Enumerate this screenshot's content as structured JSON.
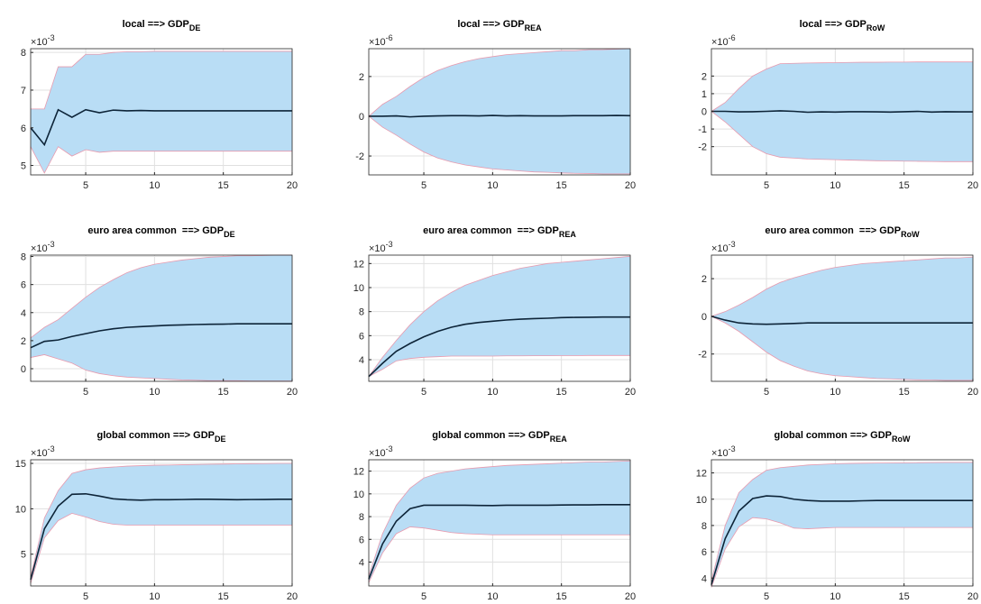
{
  "chart_data": [
    {
      "type": "line",
      "title": "local ==> GDP",
      "title_sub": "DE",
      "y_scale_label": "×10",
      "y_scale_power": "-3",
      "x": [
        1,
        2,
        3,
        4,
        5,
        6,
        7,
        8,
        9,
        10,
        11,
        12,
        13,
        14,
        15,
        16,
        17,
        18,
        19,
        20
      ],
      "xlim": [
        1,
        20
      ],
      "xticks": [
        5,
        10,
        15,
        20
      ],
      "ylim": [
        4.75,
        8.1
      ],
      "yticks": [
        5,
        6,
        7,
        8
      ],
      "grid": true,
      "series": [
        {
          "color": "#0d2438",
          "values": [
            6.0,
            5.55,
            6.48,
            6.28,
            6.48,
            6.4,
            6.47,
            6.45,
            6.46,
            6.45,
            6.45,
            6.45,
            6.45,
            6.45,
            6.45,
            6.45,
            6.45,
            6.45,
            6.45,
            6.45
          ]
        },
        {
          "color": "#e89aae",
          "fill": "#b9ddf5",
          "values": [
            6.5,
            6.5,
            7.62,
            7.62,
            7.95,
            7.95,
            8.0,
            8.02,
            8.02,
            8.03,
            8.03,
            8.03,
            8.03,
            8.03,
            8.03,
            8.03,
            8.03,
            8.03,
            8.03,
            8.03
          ]
        },
        {
          "color": "#e89aae",
          "values": [
            5.5,
            4.8,
            5.5,
            5.25,
            5.42,
            5.35,
            5.38,
            5.38,
            5.38,
            5.38,
            5.38,
            5.38,
            5.38,
            5.38,
            5.38,
            5.38,
            5.38,
            5.38,
            5.38,
            5.38
          ]
        }
      ]
    },
    {
      "type": "line",
      "title": "local ==> GDP",
      "title_sub": "REA",
      "y_scale_label": "×10",
      "y_scale_power": "-6",
      "x": [
        1,
        2,
        3,
        4,
        5,
        6,
        7,
        8,
        9,
        10,
        11,
        12,
        13,
        14,
        15,
        16,
        17,
        18,
        19,
        20
      ],
      "xlim": [
        1,
        20
      ],
      "xticks": [
        5,
        10,
        15,
        20
      ],
      "ylim": [
        -2.95,
        3.4
      ],
      "yticks": [
        -2,
        0,
        2
      ],
      "grid": true,
      "series": [
        {
          "color": "#0d2438",
          "values": [
            0,
            0,
            0.02,
            -0.03,
            0,
            0.02,
            0.03,
            0.03,
            0.02,
            0.04,
            0.02,
            0.03,
            0.02,
            0.02,
            0.02,
            0.03,
            0.03,
            0.03,
            0.04,
            0.03
          ]
        },
        {
          "color": "#e89aae",
          "fill": "#b9ddf5",
          "values": [
            0,
            0.6,
            1.0,
            1.5,
            1.95,
            2.3,
            2.55,
            2.75,
            2.9,
            3.0,
            3.1,
            3.15,
            3.2,
            3.25,
            3.3,
            3.3,
            3.35,
            3.35,
            3.38,
            3.4
          ]
        },
        {
          "color": "#e89aae",
          "values": [
            0,
            -0.55,
            -0.95,
            -1.4,
            -1.8,
            -2.1,
            -2.3,
            -2.45,
            -2.55,
            -2.65,
            -2.7,
            -2.75,
            -2.8,
            -2.82,
            -2.85,
            -2.87,
            -2.88,
            -2.9,
            -2.9,
            -2.9
          ]
        }
      ]
    },
    {
      "type": "line",
      "title": "local ==> GDP",
      "title_sub": "RoW",
      "y_scale_label": "×10",
      "y_scale_power": "-6",
      "x": [
        1,
        2,
        3,
        4,
        5,
        6,
        7,
        8,
        9,
        10,
        11,
        12,
        13,
        14,
        15,
        16,
        17,
        18,
        19,
        20
      ],
      "xlim": [
        1,
        20
      ],
      "xticks": [
        5,
        10,
        15,
        20
      ],
      "ylim": [
        -3.6,
        3.55
      ],
      "yticks": [
        -2,
        -1,
        0,
        1,
        2
      ],
      "grid": true,
      "series": [
        {
          "color": "#0d2438",
          "values": [
            0,
            0,
            -0.03,
            -0.02,
            0,
            0.03,
            0,
            -0.05,
            -0.03,
            -0.04,
            -0.02,
            -0.02,
            -0.03,
            -0.04,
            -0.02,
            0,
            -0.04,
            -0.02,
            -0.03,
            -0.03
          ]
        },
        {
          "color": "#e89aae",
          "fill": "#b9ddf5",
          "values": [
            0,
            0.5,
            1.3,
            2.0,
            2.4,
            2.7,
            2.72,
            2.74,
            2.75,
            2.76,
            2.77,
            2.78,
            2.78,
            2.79,
            2.79,
            2.8,
            2.8,
            2.8,
            2.8,
            2.8
          ]
        },
        {
          "color": "#e89aae",
          "values": [
            0,
            -0.6,
            -1.3,
            -2.0,
            -2.4,
            -2.6,
            -2.65,
            -2.7,
            -2.72,
            -2.74,
            -2.76,
            -2.78,
            -2.8,
            -2.81,
            -2.82,
            -2.83,
            -2.84,
            -2.85,
            -2.85,
            -2.85
          ]
        }
      ]
    },
    {
      "type": "line",
      "title": "euro area common  ==> GDP",
      "title_sub": "DE",
      "y_scale_label": "×10",
      "y_scale_power": "-3",
      "x": [
        1,
        2,
        3,
        4,
        5,
        6,
        7,
        8,
        9,
        10,
        11,
        12,
        13,
        14,
        15,
        16,
        17,
        18,
        19,
        20
      ],
      "xlim": [
        1,
        20
      ],
      "xticks": [
        5,
        10,
        15,
        20
      ],
      "ylim": [
        -0.9,
        8.1
      ],
      "yticks": [
        0,
        2,
        4,
        6,
        8
      ],
      "grid": true,
      "series": [
        {
          "color": "#0d2438",
          "values": [
            1.5,
            1.95,
            2.05,
            2.3,
            2.5,
            2.7,
            2.85,
            2.95,
            3.0,
            3.05,
            3.1,
            3.12,
            3.15,
            3.17,
            3.18,
            3.2,
            3.2,
            3.2,
            3.2,
            3.2
          ]
        },
        {
          "color": "#e89aae",
          "fill": "#b9ddf5",
          "values": [
            2.2,
            2.95,
            3.5,
            4.3,
            5.1,
            5.8,
            6.35,
            6.85,
            7.2,
            7.45,
            7.6,
            7.75,
            7.85,
            7.95,
            8.0,
            8.05,
            8.05,
            8.08,
            8.1,
            8.1
          ]
        },
        {
          "color": "#e89aae",
          "values": [
            0.8,
            1.0,
            0.7,
            0.4,
            -0.1,
            -0.35,
            -0.5,
            -0.6,
            -0.65,
            -0.7,
            -0.75,
            -0.8,
            -0.82,
            -0.85,
            -0.85,
            -0.85,
            -0.88,
            -0.88,
            -0.88,
            -0.88
          ]
        }
      ]
    },
    {
      "type": "line",
      "title": "euro area common  ==> GDP",
      "title_sub": "REA",
      "y_scale_label": "×10",
      "y_scale_power": "-3",
      "x": [
        1,
        2,
        3,
        4,
        5,
        6,
        7,
        8,
        9,
        10,
        11,
        12,
        13,
        14,
        15,
        16,
        17,
        18,
        19,
        20
      ],
      "xlim": [
        1,
        20
      ],
      "xticks": [
        5,
        10,
        15,
        20
      ],
      "ylim": [
        2.2,
        12.7
      ],
      "yticks": [
        4,
        6,
        8,
        10,
        12
      ],
      "grid": true,
      "series": [
        {
          "color": "#0d2438",
          "values": [
            2.6,
            3.7,
            4.7,
            5.35,
            5.9,
            6.35,
            6.7,
            6.95,
            7.1,
            7.2,
            7.3,
            7.37,
            7.42,
            7.45,
            7.5,
            7.52,
            7.53,
            7.55,
            7.55,
            7.55
          ]
        },
        {
          "color": "#e89aae",
          "fill": "#b9ddf5",
          "values": [
            2.6,
            4.2,
            5.6,
            6.9,
            8.0,
            8.9,
            9.6,
            10.2,
            10.6,
            11.0,
            11.3,
            11.6,
            11.8,
            12.0,
            12.1,
            12.2,
            12.3,
            12.4,
            12.5,
            12.6
          ]
        },
        {
          "color": "#e89aae",
          "values": [
            2.6,
            3.2,
            3.9,
            4.1,
            4.2,
            4.25,
            4.3,
            4.3,
            4.3,
            4.3,
            4.32,
            4.32,
            4.33,
            4.33,
            4.34,
            4.34,
            4.35,
            4.35,
            4.35,
            4.35
          ]
        }
      ]
    },
    {
      "type": "line",
      "title": "euro area common  ==> GDP",
      "title_sub": "RoW",
      "y_scale_label": "×10",
      "y_scale_power": "-3",
      "x": [
        1,
        2,
        3,
        4,
        5,
        6,
        7,
        8,
        9,
        10,
        11,
        12,
        13,
        14,
        15,
        16,
        17,
        18,
        19,
        20
      ],
      "xlim": [
        1,
        20
      ],
      "xticks": [
        5,
        10,
        15,
        20
      ],
      "ylim": [
        -3.45,
        3.25
      ],
      "yticks": [
        -2,
        0,
        2
      ],
      "grid": true,
      "series": [
        {
          "color": "#0d2438",
          "values": [
            0,
            -0.2,
            -0.35,
            -0.4,
            -0.42,
            -0.4,
            -0.38,
            -0.35,
            -0.35,
            -0.35,
            -0.35,
            -0.35,
            -0.35,
            -0.35,
            -0.35,
            -0.35,
            -0.35,
            -0.35,
            -0.35,
            -0.35
          ]
        },
        {
          "color": "#e89aae",
          "fill": "#b9ddf5",
          "values": [
            0,
            0.25,
            0.6,
            1.0,
            1.45,
            1.8,
            2.05,
            2.25,
            2.45,
            2.6,
            2.7,
            2.8,
            2.85,
            2.9,
            2.95,
            3.0,
            3.05,
            3.1,
            3.1,
            3.15
          ]
        },
        {
          "color": "#e89aae",
          "values": [
            0,
            -0.35,
            -0.8,
            -1.35,
            -1.9,
            -2.35,
            -2.65,
            -2.9,
            -3.05,
            -3.15,
            -3.2,
            -3.25,
            -3.3,
            -3.32,
            -3.35,
            -3.37,
            -3.38,
            -3.4,
            -3.4,
            -3.4
          ]
        }
      ]
    },
    {
      "type": "line",
      "title": "global common ==> GDP",
      "title_sub": "DE",
      "y_scale_label": "×10",
      "y_scale_power": "-3",
      "x": [
        1,
        2,
        3,
        4,
        5,
        6,
        7,
        8,
        9,
        10,
        11,
        12,
        13,
        14,
        15,
        16,
        17,
        18,
        19,
        20
      ],
      "xlim": [
        1,
        20
      ],
      "xticks": [
        5,
        10,
        15,
        20
      ],
      "ylim": [
        1.5,
        15.4
      ],
      "yticks": [
        5,
        10,
        15
      ],
      "grid": true,
      "series": [
        {
          "color": "#0d2438",
          "values": [
            2.2,
            7.8,
            10.3,
            11.6,
            11.65,
            11.4,
            11.1,
            11.0,
            10.95,
            11.0,
            11.0,
            11.02,
            11.05,
            11.05,
            11.03,
            11.0,
            11.02,
            11.03,
            11.05,
            11.05
          ]
        },
        {
          "color": "#e89aae",
          "fill": "#b9ddf5",
          "values": [
            2.5,
            9.0,
            12.0,
            13.9,
            14.3,
            14.5,
            14.6,
            14.7,
            14.75,
            14.8,
            14.82,
            14.85,
            14.88,
            14.9,
            14.92,
            14.95,
            14.97,
            14.98,
            15.0,
            15.0
          ]
        },
        {
          "color": "#e89aae",
          "values": [
            1.8,
            6.8,
            8.7,
            9.5,
            9.1,
            8.6,
            8.3,
            8.2,
            8.2,
            8.2,
            8.2,
            8.2,
            8.2,
            8.2,
            8.2,
            8.2,
            8.2,
            8.2,
            8.2,
            8.2
          ]
        }
      ]
    },
    {
      "type": "line",
      "title": "global common ==> GDP",
      "title_sub": "REA",
      "y_scale_label": "×10",
      "y_scale_power": "-3",
      "x": [
        1,
        2,
        3,
        4,
        5,
        6,
        7,
        8,
        9,
        10,
        11,
        12,
        13,
        14,
        15,
        16,
        17,
        18,
        19,
        20
      ],
      "xlim": [
        1,
        20
      ],
      "xticks": [
        5,
        10,
        15,
        20
      ],
      "ylim": [
        1.9,
        13.0
      ],
      "yticks": [
        4,
        6,
        8,
        10,
        12
      ],
      "grid": true,
      "series": [
        {
          "color": "#0d2438",
          "values": [
            2.5,
            5.6,
            7.6,
            8.7,
            9.0,
            9.0,
            9.0,
            9.0,
            8.98,
            8.97,
            9.0,
            9.0,
            9.0,
            9.0,
            9.02,
            9.03,
            9.03,
            9.05,
            9.05,
            9.05
          ]
        },
        {
          "color": "#e89aae",
          "fill": "#b9ddf5",
          "values": [
            2.8,
            6.5,
            9.0,
            10.5,
            11.4,
            11.8,
            12.0,
            12.2,
            12.3,
            12.4,
            12.5,
            12.55,
            12.6,
            12.65,
            12.7,
            12.75,
            12.8,
            12.8,
            12.85,
            12.9
          ]
        },
        {
          "color": "#e89aae",
          "values": [
            2.2,
            4.8,
            6.5,
            7.1,
            7.0,
            6.8,
            6.6,
            6.5,
            6.45,
            6.4,
            6.4,
            6.4,
            6.4,
            6.4,
            6.4,
            6.4,
            6.4,
            6.4,
            6.4,
            6.4
          ]
        }
      ]
    },
    {
      "type": "line",
      "title": "global common ==> GDP",
      "title_sub": "RoW",
      "y_scale_label": "×10",
      "y_scale_power": "-3",
      "x": [
        1,
        2,
        3,
        4,
        5,
        6,
        7,
        8,
        9,
        10,
        11,
        12,
        13,
        14,
        15,
        16,
        17,
        18,
        19,
        20
      ],
      "xlim": [
        1,
        20
      ],
      "xticks": [
        5,
        10,
        15,
        20
      ],
      "ylim": [
        3.4,
        13.0
      ],
      "yticks": [
        4,
        6,
        8,
        10,
        12
      ],
      "grid": true,
      "series": [
        {
          "color": "#0d2438",
          "values": [
            3.5,
            7.0,
            9.1,
            10.05,
            10.25,
            10.2,
            10.0,
            9.9,
            9.85,
            9.85,
            9.85,
            9.88,
            9.9,
            9.9,
            9.9,
            9.9,
            9.9,
            9.9,
            9.9,
            9.9
          ]
        },
        {
          "color": "#e89aae",
          "fill": "#b9ddf5",
          "values": [
            3.8,
            8.0,
            10.5,
            11.5,
            12.2,
            12.4,
            12.5,
            12.6,
            12.65,
            12.7,
            12.72,
            12.74,
            12.75,
            12.76,
            12.77,
            12.78,
            12.79,
            12.8,
            12.8,
            12.8
          ]
        },
        {
          "color": "#e89aae",
          "values": [
            3.3,
            6.2,
            7.9,
            8.6,
            8.5,
            8.2,
            7.8,
            7.75,
            7.8,
            7.85,
            7.85,
            7.85,
            7.85,
            7.85,
            7.85,
            7.85,
            7.85,
            7.85,
            7.85,
            7.85
          ]
        }
      ]
    }
  ]
}
